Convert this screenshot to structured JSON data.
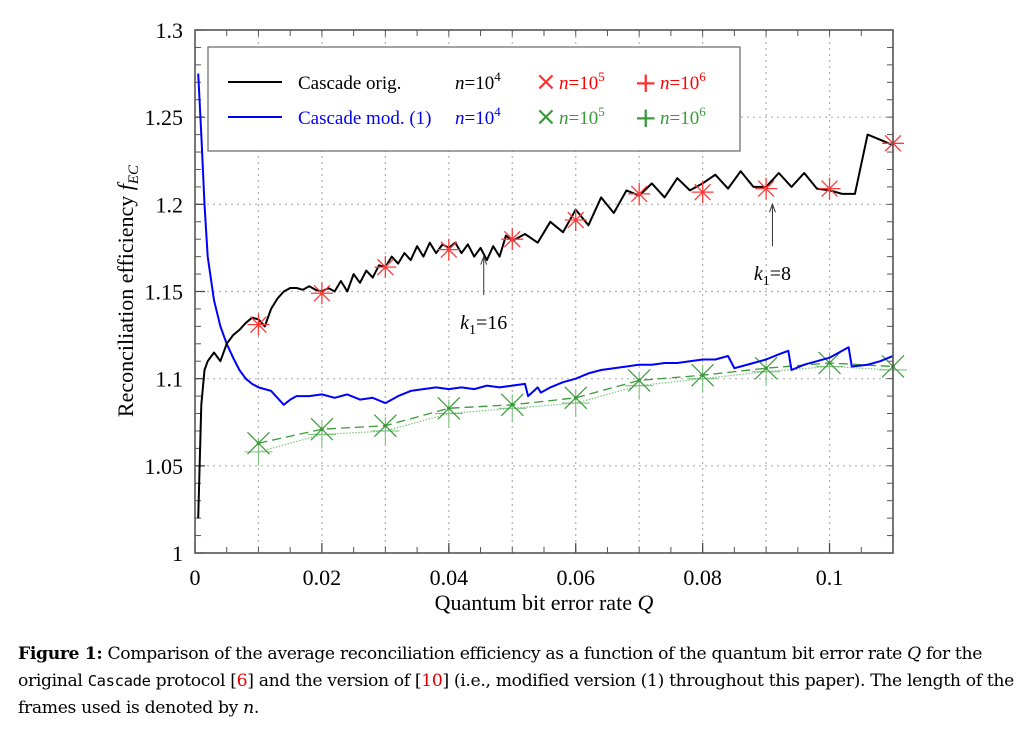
{
  "chart_data": {
    "type": "line",
    "title": "",
    "xlabel": "Quantum bit error rate Q",
    "ylabel": "Reconciliation efficiency f_EC",
    "xlim": [
      0,
      0.11
    ],
    "ylim": [
      1.0,
      1.3
    ],
    "grid": true,
    "legend_position": "top-left",
    "x_ticks": [
      {
        "value": 0,
        "label": "0"
      },
      {
        "value": 0.02,
        "label": "0.02"
      },
      {
        "value": 0.04,
        "label": "0.04"
      },
      {
        "value": 0.06,
        "label": "0.06"
      },
      {
        "value": 0.08,
        "label": "0.08"
      },
      {
        "value": 0.1,
        "label": "0.1"
      }
    ],
    "y_ticks": [
      {
        "value": 1.0,
        "label": "1"
      },
      {
        "value": 1.05,
        "label": "1.05"
      },
      {
        "value": 1.1,
        "label": "1.1"
      },
      {
        "value": 1.15,
        "label": "1.15"
      },
      {
        "value": 1.2,
        "label": "1.2"
      },
      {
        "value": 1.25,
        "label": "1.25"
      },
      {
        "value": 1.3,
        "label": "1.3"
      }
    ],
    "series": [
      {
        "name": "Cascade orig. n=10^4",
        "color": "#000000",
        "style": "solid",
        "x": [
          0.0005,
          0.001,
          0.0015,
          0.002,
          0.003,
          0.004,
          0.005,
          0.006,
          0.007,
          0.008,
          0.009,
          0.01,
          0.011,
          0.012,
          0.013,
          0.014,
          0.015,
          0.016,
          0.017,
          0.018,
          0.019,
          0.02,
          0.021,
          0.022,
          0.023,
          0.024,
          0.025,
          0.026,
          0.027,
          0.028,
          0.029,
          0.03,
          0.031,
          0.032,
          0.033,
          0.034,
          0.035,
          0.036,
          0.037,
          0.038,
          0.039,
          0.04,
          0.041,
          0.042,
          0.043,
          0.044,
          0.045,
          0.046,
          0.047,
          0.048,
          0.049,
          0.05,
          0.052,
          0.054,
          0.056,
          0.058,
          0.06,
          0.062,
          0.064,
          0.066,
          0.068,
          0.07,
          0.072,
          0.074,
          0.076,
          0.078,
          0.08,
          0.082,
          0.084,
          0.086,
          0.088,
          0.09,
          0.092,
          0.094,
          0.096,
          0.098,
          0.1,
          0.102,
          0.104,
          0.106,
          0.108,
          0.11
        ],
        "y": [
          1.02,
          1.085,
          1.105,
          1.11,
          1.115,
          1.11,
          1.12,
          1.125,
          1.128,
          1.132,
          1.135,
          1.134,
          1.13,
          1.14,
          1.146,
          1.15,
          1.152,
          1.152,
          1.151,
          1.153,
          1.151,
          1.15,
          1.152,
          1.15,
          1.156,
          1.15,
          1.16,
          1.155,
          1.162,
          1.158,
          1.165,
          1.164,
          1.17,
          1.166,
          1.172,
          1.168,
          1.176,
          1.17,
          1.178,
          1.172,
          1.177,
          1.175,
          1.178,
          1.172,
          1.177,
          1.17,
          1.175,
          1.168,
          1.176,
          1.17,
          1.182,
          1.179,
          1.183,
          1.178,
          1.19,
          1.184,
          1.197,
          1.188,
          1.204,
          1.195,
          1.208,
          1.205,
          1.212,
          1.204,
          1.215,
          1.208,
          1.212,
          1.217,
          1.209,
          1.219,
          1.21,
          1.21,
          1.218,
          1.21,
          1.218,
          1.209,
          1.208,
          1.206,
          1.206,
          1.24,
          1.237,
          1.234
        ]
      },
      {
        "name": "Cascade mod. (1) n=10^4",
        "color": "#0000ff",
        "style": "solid",
        "x": [
          0.0005,
          0.001,
          0.0015,
          0.002,
          0.003,
          0.004,
          0.005,
          0.006,
          0.007,
          0.008,
          0.009,
          0.01,
          0.012,
          0.014,
          0.015,
          0.016,
          0.018,
          0.02,
          0.022,
          0.024,
          0.026,
          0.028,
          0.03,
          0.032,
          0.034,
          0.036,
          0.038,
          0.04,
          0.042,
          0.044,
          0.046,
          0.048,
          0.05,
          0.052,
          0.0525,
          0.054,
          0.0545,
          0.056,
          0.058,
          0.06,
          0.062,
          0.064,
          0.066,
          0.068,
          0.07,
          0.072,
          0.074,
          0.076,
          0.078,
          0.08,
          0.082,
          0.084,
          0.085,
          0.086,
          0.088,
          0.09,
          0.092,
          0.0935,
          0.094,
          0.096,
          0.098,
          0.1,
          0.102,
          0.103,
          0.1035,
          0.106,
          0.108,
          0.11
        ],
        "y": [
          1.275,
          1.24,
          1.2,
          1.17,
          1.145,
          1.13,
          1.12,
          1.112,
          1.105,
          1.1,
          1.097,
          1.095,
          1.093,
          1.085,
          1.088,
          1.09,
          1.09,
          1.091,
          1.089,
          1.091,
          1.088,
          1.089,
          1.086,
          1.09,
          1.093,
          1.094,
          1.095,
          1.094,
          1.095,
          1.094,
          1.096,
          1.095,
          1.096,
          1.097,
          1.09,
          1.095,
          1.092,
          1.095,
          1.098,
          1.1,
          1.103,
          1.105,
          1.106,
          1.107,
          1.108,
          1.108,
          1.109,
          1.109,
          1.11,
          1.111,
          1.111,
          1.113,
          1.106,
          1.107,
          1.109,
          1.111,
          1.114,
          1.116,
          1.105,
          1.108,
          1.11,
          1.112,
          1.116,
          1.118,
          1.107,
          1.108,
          1.11,
          1.113
        ]
      },
      {
        "name": "Cascade orig. n=10^5 / n=10^6 (markers)",
        "color": "#ff0000",
        "style": "markers",
        "marker": "asterisk",
        "x": [
          0.01,
          0.02,
          0.03,
          0.04,
          0.05,
          0.06,
          0.07,
          0.08,
          0.09,
          0.1,
          0.11
        ],
        "y": [
          1.131,
          1.149,
          1.164,
          1.174,
          1.18,
          1.191,
          1.206,
          1.207,
          1.209,
          1.209,
          1.235
        ]
      },
      {
        "name": "Cascade mod. (1) n=10^5",
        "color": "#3a9a3a",
        "style": "dashed",
        "marker": "x",
        "x": [
          0.01,
          0.02,
          0.03,
          0.04,
          0.05,
          0.06,
          0.07,
          0.08,
          0.09,
          0.1,
          0.11
        ],
        "y": [
          1.063,
          1.071,
          1.073,
          1.083,
          1.085,
          1.089,
          1.099,
          1.102,
          1.106,
          1.109,
          1.107
        ]
      },
      {
        "name": "Cascade mod. (1) n=10^6",
        "color": "#7fc27f",
        "style": "dotted",
        "marker": "+",
        "x": [
          0.01,
          0.02,
          0.03,
          0.04,
          0.05,
          0.06,
          0.07,
          0.08,
          0.09,
          0.1,
          0.11
        ],
        "y": [
          1.058,
          1.068,
          1.07,
          1.08,
          1.083,
          1.086,
          1.096,
          1.1,
          1.104,
          1.107,
          1.105
        ]
      }
    ],
    "legend": [
      {
        "label": "Cascade orig.",
        "color": "#000000",
        "n1": "n=10",
        "e1": "4",
        "n2": "n=10",
        "e2": "5",
        "n3": "n=10",
        "e3": "6",
        "n_color1": "#000000",
        "n_color": "#ff0000"
      },
      {
        "label": "Cascade mod. (1)",
        "color": "#0000ff",
        "n1": "n=10",
        "e1": "4",
        "n2": "n=10",
        "e2": "5",
        "n3": "n=10",
        "e3": "6",
        "n_color1": "#0000ff",
        "n_color": "#3a9a3a"
      }
    ],
    "annotations": [
      {
        "text_k": "k",
        "text_sub": "1",
        "text_val": "=16",
        "x": 0.0455,
        "y_arrow_tip": 1.17,
        "y_arrow_tail": 1.148
      },
      {
        "text_k": "k",
        "text_sub": "1",
        "text_val": "=8",
        "x": 0.091,
        "y_arrow_tip": 1.2,
        "y_arrow_tail": 1.176
      }
    ]
  },
  "caption": {
    "label": "Figure 1:",
    "part1": " Comparison of the average reconciliation efficiency as a function of the quantum bit error rate ",
    "q": "Q",
    "part2": " for the original ",
    "mono": "Cascade",
    "part3": " protocol [",
    "ref1": "6",
    "part4": "] and the version of [",
    "ref2": "10",
    "part5": "] (i.e., modified version (1) throughout this paper). The length of the frames used is denoted by ",
    "n": "n",
    "part6": "."
  }
}
